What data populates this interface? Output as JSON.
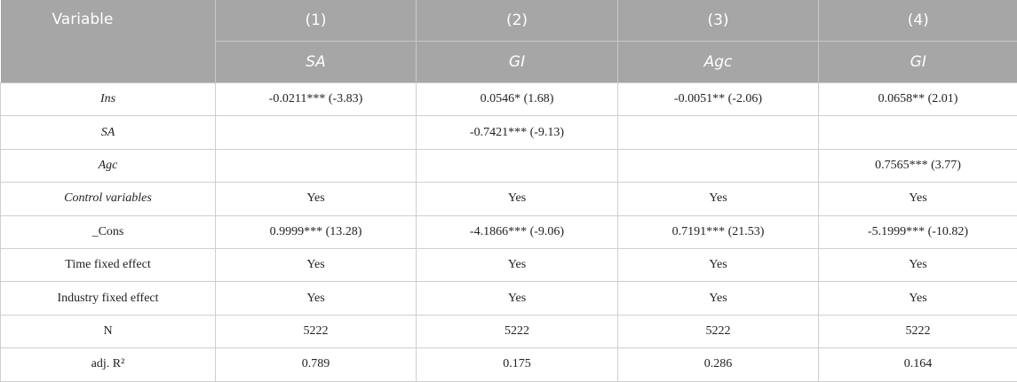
{
  "table": {
    "stub_header": "Variable",
    "columns": [
      {
        "number": "(1)",
        "dependent": "SA"
      },
      {
        "number": "(2)",
        "dependent": "GI"
      },
      {
        "number": "(3)",
        "dependent": "Agc"
      },
      {
        "number": "(4)",
        "dependent": "GI"
      }
    ],
    "rows": [
      {
        "label": "Ins",
        "italic": true,
        "cells": [
          "-0.0211*** (-3.83)",
          "0.0546* (1.68)",
          "-0.0051** (-2.06)",
          "0.0658** (2.01)"
        ]
      },
      {
        "label": "SA",
        "italic": true,
        "cells": [
          null,
          "-0.7421*** (-9.13)",
          null,
          null
        ]
      },
      {
        "label": "Agc",
        "italic": true,
        "cells": [
          null,
          null,
          null,
          "0.7565*** (3.77)"
        ]
      },
      {
        "label": "Control variables",
        "italic": true,
        "cells": [
          "Yes",
          "Yes",
          "Yes",
          "Yes"
        ]
      },
      {
        "label": "_Cons",
        "italic": false,
        "cells": [
          "0.9999*** (13.28)",
          "-4.1866*** (-9.06)",
          "0.7191*** (21.53)",
          "-5.1999*** (-10.82)"
        ]
      },
      {
        "label": "Time fixed effect",
        "italic": false,
        "cells": [
          "Yes",
          "Yes",
          "Yes",
          "Yes"
        ]
      },
      {
        "label": "Industry fixed effect",
        "italic": false,
        "cells": [
          "Yes",
          "Yes",
          "Yes",
          "Yes"
        ]
      },
      {
        "label": "N",
        "italic": false,
        "cells": [
          "5222",
          "5222",
          "5222",
          "5222"
        ]
      },
      {
        "label": "adj. R²",
        "italic": false,
        "cells": [
          "0.789",
          "0.175",
          "0.286",
          "0.164"
        ]
      }
    ]
  }
}
